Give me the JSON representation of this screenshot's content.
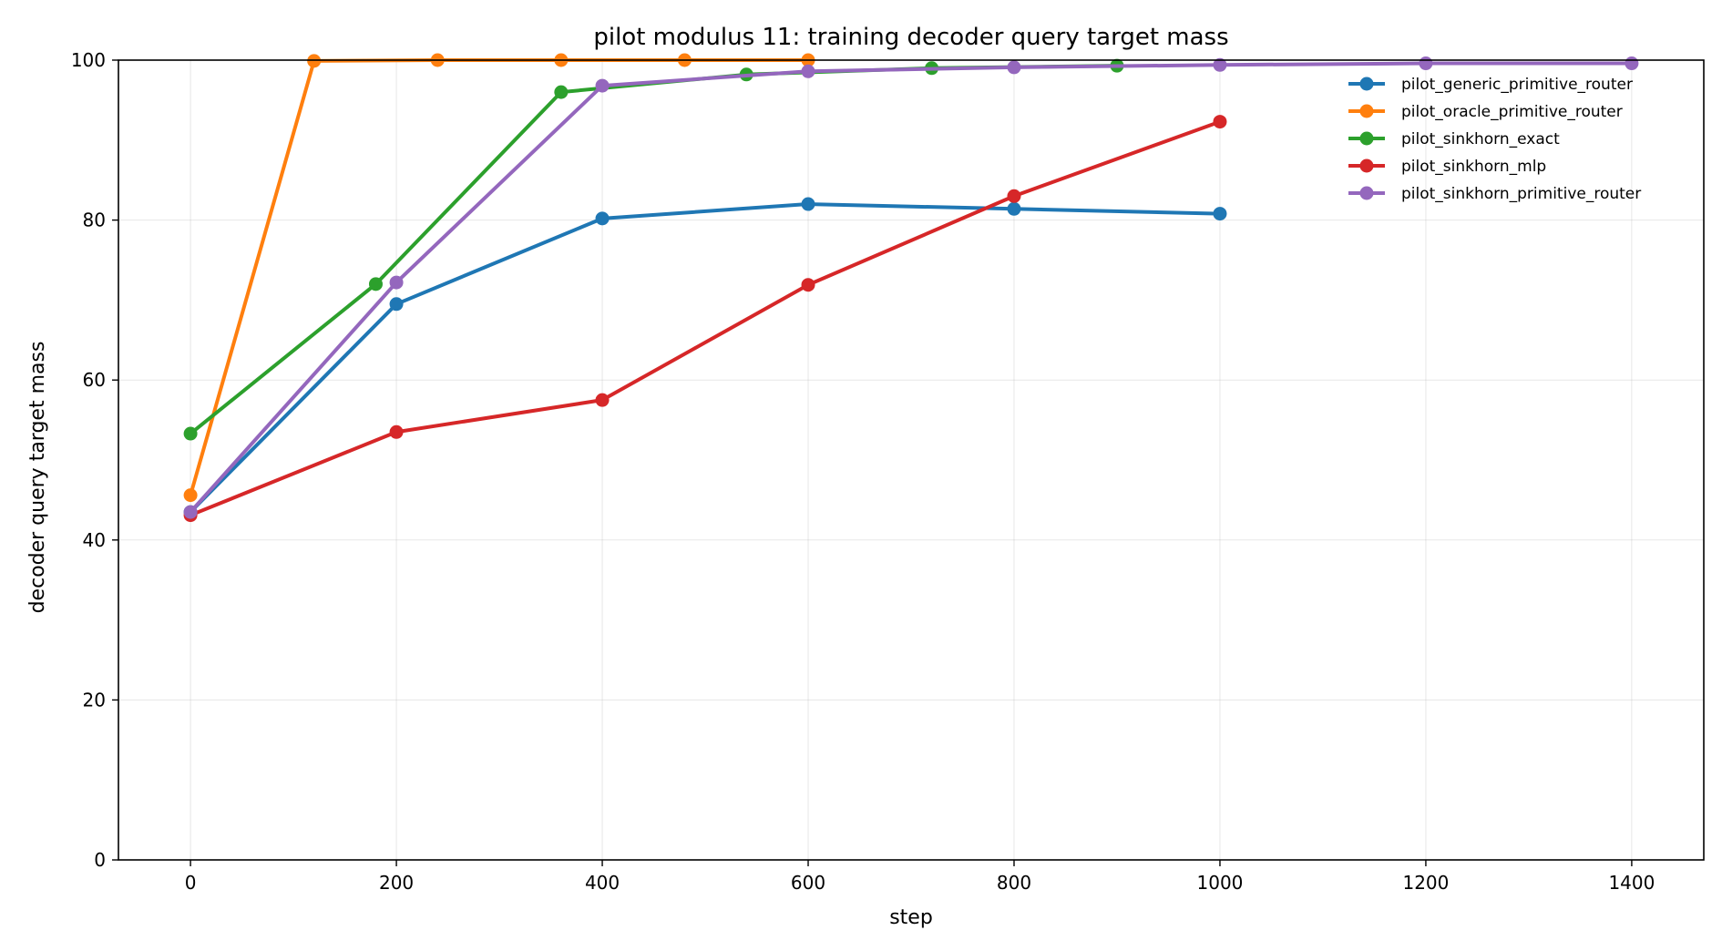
{
  "chart_data": {
    "type": "line",
    "title": "pilot modulus 11: training decoder query target mass",
    "xlabel": "step",
    "ylabel": "decoder query target mass",
    "xlim": [
      -70,
      1470
    ],
    "ylim": [
      0,
      100
    ],
    "x_ticks": [
      0,
      200,
      400,
      600,
      800,
      1000,
      1200,
      1400
    ],
    "y_ticks": [
      0,
      20,
      40,
      60,
      80,
      100
    ],
    "grid": true,
    "legend_position": "top-right",
    "series": [
      {
        "name": "pilot_generic_primitive_router",
        "color": "#1f77b4",
        "x": [
          0,
          200,
          400,
          600,
          800,
          1000
        ],
        "y": [
          43.5,
          69.5,
          80.2,
          82.0,
          81.4,
          80.8
        ]
      },
      {
        "name": "pilot_oracle_primitive_router",
        "color": "#ff7f0e",
        "x": [
          0,
          120,
          240,
          360,
          480,
          600
        ],
        "y": [
          45.6,
          99.9,
          100.0,
          100.0,
          100.0,
          100.0
        ]
      },
      {
        "name": "pilot_sinkhorn_exact",
        "color": "#2ca02c",
        "x": [
          0,
          180,
          360,
          540,
          720,
          900
        ],
        "y": [
          53.3,
          72.0,
          96.0,
          98.2,
          99.0,
          99.3
        ]
      },
      {
        "name": "pilot_sinkhorn_mlp",
        "color": "#d62728",
        "x": [
          0,
          200,
          400,
          600,
          800,
          1000
        ],
        "y": [
          43.1,
          53.5,
          57.5,
          71.9,
          83.0,
          92.3
        ]
      },
      {
        "name": "pilot_sinkhorn_primitive_router",
        "color": "#9467bd",
        "x": [
          0,
          200,
          400,
          600,
          800,
          1000,
          1200,
          1400
        ],
        "y": [
          43.5,
          72.2,
          96.8,
          98.6,
          99.1,
          99.4,
          99.6,
          99.6
        ]
      }
    ]
  }
}
